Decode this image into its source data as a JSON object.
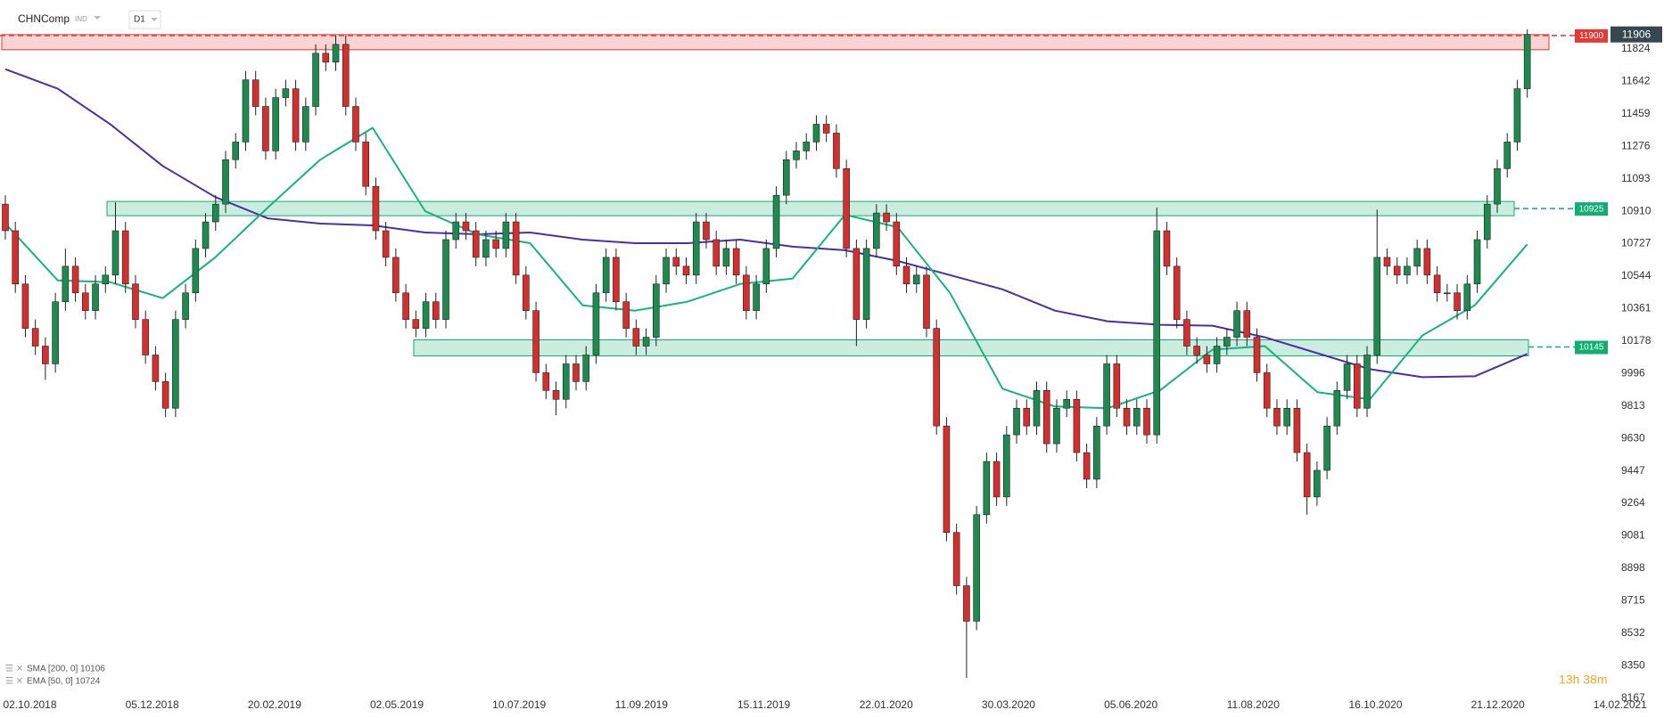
{
  "toolbar": {
    "symbol": "CHNComp",
    "kind": "IND",
    "interval": "D1"
  },
  "chart_data": {
    "type": "candlestick",
    "x_labels": [
      "02.10.2018",
      "05.12.2018",
      "20.02.2019",
      "02.05.2019",
      "10.07.2019",
      "11.09.2019",
      "15.11.2019",
      "22.01.2020",
      "30.03.2020",
      "05.06.2020",
      "11.08.2020",
      "16.10.2020",
      "21.12.2020",
      "14.02.2021"
    ],
    "open": [
      10950,
      10800,
      10500,
      10250,
      10150,
      10050,
      10400,
      10600,
      10450,
      10350,
      10500,
      10550,
      10800,
      10500,
      10300,
      10100,
      9950,
      9800,
      10300,
      10450,
      10700,
      10850,
      10950,
      11200,
      11300,
      11650,
      11500,
      11250,
      11550,
      11600,
      11300,
      11500,
      11800,
      11750,
      11850,
      11500,
      11300,
      11050,
      10800,
      10650,
      10450,
      10300,
      10250,
      10400,
      10300,
      10750,
      10850,
      10800,
      10650,
      10750,
      10700,
      10850,
      10550,
      10350,
      10000,
      9900,
      9850,
      10050,
      9950,
      10100,
      10450,
      10650,
      10400,
      10250,
      10150,
      10200,
      10500,
      10650,
      10600,
      10550,
      10850,
      10750,
      10600,
      10700,
      10550,
      10350,
      10500,
      10700,
      11000,
      11200,
      11250,
      11300,
      11400,
      11350,
      11150,
      10700,
      10300,
      10700,
      10900,
      10850,
      10600,
      10500,
      10550,
      10250,
      9700,
      9100,
      8800,
      8600,
      9200,
      9500,
      9300,
      9650,
      9800,
      9700,
      9900,
      9600,
      9800,
      9850,
      9550,
      9400,
      9700,
      10050,
      9800,
      9700,
      9800,
      9650,
      10800,
      10600,
      10300,
      10150,
      10100,
      10050,
      10150,
      10200,
      10350,
      10200,
      10000,
      9800,
      9700,
      9800,
      9550,
      9300,
      9450,
      9700,
      9900,
      10050,
      9800,
      10100,
      10650,
      10600,
      10550,
      10600,
      10700,
      10550,
      10450,
      10450,
      10350,
      10500,
      10750,
      10950,
      11150,
      11300,
      11600
    ],
    "high": [
      11000,
      10850,
      10550,
      10300,
      10200,
      10450,
      10700,
      10650,
      10500,
      10550,
      10600,
      10960,
      10850,
      10550,
      10350,
      10150,
      10000,
      10350,
      10500,
      10750,
      10900,
      11000,
      11250,
      11350,
      11700,
      11700,
      11550,
      11600,
      11650,
      11650,
      11550,
      11850,
      11850,
      11900,
      11900,
      11550,
      11350,
      11100,
      10850,
      10700,
      10500,
      10350,
      10450,
      10450,
      10800,
      10900,
      10900,
      10850,
      10800,
      10800,
      10900,
      10900,
      10600,
      10400,
      10050,
      9950,
      10100,
      10100,
      10150,
      10500,
      10700,
      10700,
      10450,
      10300,
      10250,
      10550,
      10700,
      10700,
      10650,
      10900,
      10900,
      10800,
      10750,
      10750,
      10600,
      10550,
      10750,
      11050,
      11250,
      11300,
      11350,
      11450,
      11450,
      11400,
      11200,
      10750,
      10750,
      10950,
      10950,
      10900,
      10650,
      10600,
      10600,
      10300,
      9750,
      9150,
      8850,
      9250,
      9550,
      9550,
      9700,
      9850,
      9850,
      9950,
      9950,
      9850,
      9900,
      9900,
      9600,
      9750,
      10100,
      10100,
      9850,
      9850,
      9850,
      10930,
      10850,
      10650,
      10350,
      10200,
      10150,
      10200,
      10250,
      10400,
      10400,
      10250,
      10050,
      9850,
      9850,
      9850,
      9600,
      9500,
      9750,
      9950,
      10100,
      10100,
      10150,
      10920,
      10700,
      10650,
      10650,
      10750,
      10750,
      10600,
      10500,
      10500,
      10550,
      10800,
      11000,
      11200,
      11350,
      11650,
      11935
    ],
    "low": [
      10750,
      10450,
      10200,
      10100,
      9960,
      10000,
      10350,
      10400,
      10300,
      10300,
      10450,
      10500,
      10450,
      10250,
      10050,
      9900,
      9750,
      9750,
      10250,
      10400,
      10650,
      10800,
      10900,
      11150,
      11250,
      11450,
      11200,
      11200,
      11500,
      11250,
      11250,
      11450,
      11700,
      11700,
      11450,
      11250,
      11000,
      10750,
      10600,
      10400,
      10250,
      10200,
      10200,
      10250,
      10250,
      10700,
      10750,
      10600,
      10600,
      10650,
      10650,
      10500,
      10300,
      9950,
      9850,
      9760,
      9800,
      9900,
      9900,
      10050,
      10400,
      10350,
      10200,
      10100,
      10100,
      10150,
      10450,
      10550,
      10500,
      10500,
      10700,
      10550,
      10550,
      10500,
      10300,
      10300,
      10450,
      10650,
      10950,
      11150,
      11200,
      11250,
      11300,
      11100,
      10650,
      10150,
      10250,
      10650,
      10800,
      10550,
      10450,
      10450,
      10200,
      9650,
      9050,
      8750,
      8280,
      8550,
      9150,
      9250,
      9250,
      9600,
      9650,
      9650,
      9550,
      9550,
      9750,
      9500,
      9350,
      9350,
      9650,
      9750,
      9650,
      9650,
      9600,
      9600,
      10550,
      10250,
      10100,
      10050,
      10000,
      10000,
      10100,
      10150,
      10150,
      9950,
      9750,
      9650,
      9650,
      9500,
      9200,
      9250,
      9400,
      9650,
      9850,
      9750,
      9750,
      10050,
      10550,
      10500,
      10500,
      10550,
      10500,
      10400,
      10400,
      10300,
      10300,
      10450,
      10700,
      10900,
      11100,
      11250,
      11550
    ],
    "close": [
      10800,
      10500,
      10250,
      10150,
      10050,
      10400,
      10600,
      10450,
      10350,
      10500,
      10550,
      10800,
      10500,
      10300,
      10100,
      9950,
      9800,
      10300,
      10450,
      10700,
      10850,
      10950,
      11200,
      11300,
      11650,
      11500,
      11250,
      11550,
      11600,
      11300,
      11500,
      11800,
      11750,
      11850,
      11500,
      11300,
      11050,
      10800,
      10650,
      10450,
      10300,
      10250,
      10400,
      10300,
      10750,
      10850,
      10800,
      10650,
      10750,
      10700,
      10850,
      10550,
      10350,
      10000,
      9900,
      9850,
      10050,
      9950,
      10100,
      10450,
      10650,
      10400,
      10250,
      10150,
      10200,
      10500,
      10650,
      10600,
      10550,
      10850,
      10750,
      10600,
      10700,
      10550,
      10350,
      10500,
      10700,
      11000,
      11200,
      11250,
      11300,
      11400,
      11350,
      11150,
      10700,
      10300,
      10700,
      10900,
      10850,
      10600,
      10500,
      10550,
      10250,
      9700,
      9100,
      8800,
      8600,
      9200,
      9500,
      9300,
      9650,
      9800,
      9700,
      9900,
      9600,
      9800,
      9850,
      9550,
      9400,
      9700,
      10050,
      9800,
      9700,
      9800,
      9650,
      10800,
      10600,
      10300,
      10150,
      10100,
      10050,
      10150,
      10200,
      10350,
      10200,
      10000,
      9800,
      9700,
      9800,
      9550,
      9300,
      9450,
      9700,
      9900,
      10050,
      9800,
      10100,
      10650,
      10600,
      10550,
      10600,
      10700,
      10550,
      10450,
      10450,
      10350,
      10500,
      10750,
      10950,
      11150,
      11300,
      11600,
      11906
    ],
    "up_color": "#1e8a50",
    "down_color": "#d32f2f",
    "series": [
      {
        "name": "SMA [200, 0] 10106",
        "color": "#4a2fa8",
        "values": [
          11710,
          11600,
          11400,
          11165,
          10990,
          10870,
          10840,
          10830,
          10790,
          10780,
          10790,
          10750,
          10730,
          10730,
          10750,
          10710,
          10690,
          10630,
          10550,
          10470,
          10350,
          10290,
          10270,
          10265,
          10200,
          10110,
          10020,
          9975,
          9980,
          10106
        ]
      },
      {
        "name": "EMA [50, 0] 10724",
        "color": "#16b47e",
        "values": [
          10840,
          10520,
          10510,
          10420,
          10650,
          10930,
          11200,
          11380,
          10910,
          10780,
          10730,
          10380,
          10350,
          10400,
          10500,
          10530,
          10890,
          10820,
          10450,
          9910,
          9810,
          9800,
          9900,
          10130,
          10150,
          9890,
          9850,
          10210,
          10380,
          10724
        ]
      }
    ],
    "levels": [
      {
        "value": 11900,
        "color": "#e53935"
      },
      {
        "value": 10925,
        "color": "#12ad72"
      },
      {
        "value": 10145,
        "color": "#12ad72"
      }
    ],
    "last_price": 11906,
    "countdown": "13h 38m",
    "ylim": [
      8140,
      12100
    ],
    "yticks": [
      11824,
      11642,
      11459,
      11276,
      11093,
      10910,
      10727,
      10544,
      10361,
      10178,
      9996,
      9813,
      9630,
      9447,
      9264,
      9081,
      8898,
      8715,
      8532,
      8350,
      8167
    ]
  }
}
